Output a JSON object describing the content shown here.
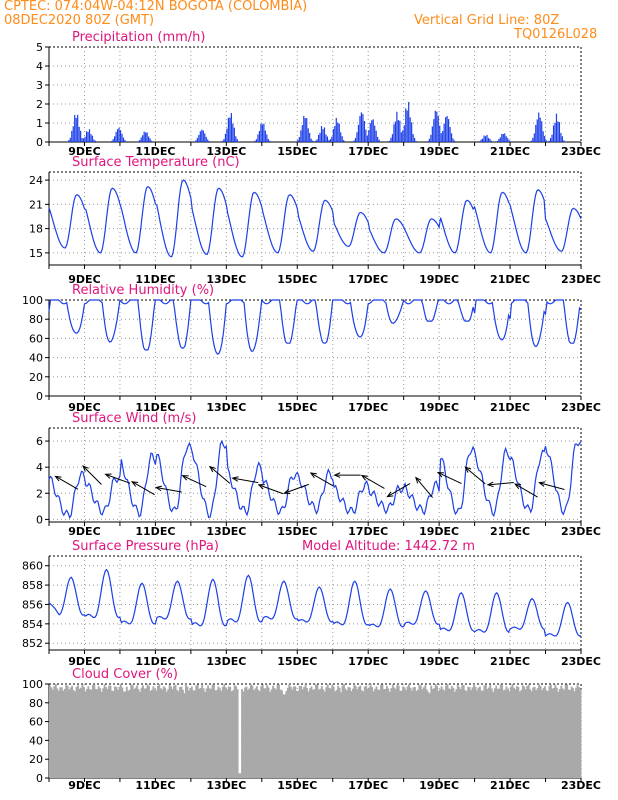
{
  "header": {
    "line1_left": "CPTEC:   074:04W-04:12N   BOGOTA (COLOMBIA)",
    "line2_left": "08DEC2020 80Z (GMT)",
    "line1_right": "Vertical Grid Line: 80Z",
    "line2_right": "TQ0126L028"
  },
  "colors": {
    "header": "#ff8c1a",
    "title": "#e0157d",
    "series": "#1c3fe8",
    "cloud": "#a9a9a9",
    "arrow": "#000000"
  },
  "chart_data": [
    {
      "type": "bar",
      "title": "Precipitation  (mm/h)",
      "x_tick_labels": [
        "9DEC",
        "11DEC",
        "13DEC",
        "15DEC",
        "17DEC",
        "19DEC",
        "21DEC",
        "23DEC"
      ],
      "ylim": [
        0,
        5
      ],
      "y_ticks": [
        0,
        1,
        2,
        3,
        4,
        5
      ],
      "grid": true,
      "rain_events": [
        {
          "day": 8.75,
          "peak": 1.6
        },
        {
          "day": 9.1,
          "peak": 0.7
        },
        {
          "day": 9.95,
          "peak": 0.8
        },
        {
          "day": 10.7,
          "peak": 0.6
        },
        {
          "day": 12.3,
          "peak": 0.7
        },
        {
          "day": 13.1,
          "peak": 1.6
        },
        {
          "day": 14.0,
          "peak": 1.1
        },
        {
          "day": 15.2,
          "peak": 1.5
        },
        {
          "day": 15.7,
          "peak": 0.9
        },
        {
          "day": 16.1,
          "peak": 1.3
        },
        {
          "day": 16.8,
          "peak": 1.7
        },
        {
          "day": 17.1,
          "peak": 1.3
        },
        {
          "day": 17.8,
          "peak": 1.6
        },
        {
          "day": 18.1,
          "peak": 2.2
        },
        {
          "day": 18.9,
          "peak": 1.8
        },
        {
          "day": 19.2,
          "peak": 1.5
        },
        {
          "day": 20.3,
          "peak": 0.4
        },
        {
          "day": 20.8,
          "peak": 0.5
        },
        {
          "day": 21.8,
          "peak": 1.6
        },
        {
          "day": 22.3,
          "peak": 1.5
        }
      ]
    },
    {
      "type": "line",
      "title": "Surface Temperature (nC)",
      "x_tick_labels": [
        "9DEC",
        "11DEC",
        "13DEC",
        "15DEC",
        "17DEC",
        "19DEC",
        "21DEC",
        "23DEC"
      ],
      "ylim": [
        13.5,
        25
      ],
      "y_ticks": [
        15,
        18,
        21,
        24
      ],
      "grid": true,
      "daily_max": [
        22.2,
        23.0,
        23.2,
        24.0,
        23.0,
        22.5,
        22.2,
        21.5,
        20.0,
        19.2,
        19.2,
        21.5,
        22.5,
        22.8,
        20.5
      ],
      "daily_min": [
        15.6,
        15.0,
        15.0,
        14.5,
        14.8,
        14.5,
        15.0,
        15.2,
        15.8,
        15.0,
        15.0,
        15.0,
        15.0,
        15.0,
        15.2
      ]
    },
    {
      "type": "line",
      "title": "Relative Humidity (%)",
      "x_tick_labels": [
        "9DEC",
        "11DEC",
        "13DEC",
        "15DEC",
        "17DEC",
        "19DEC",
        "21DEC",
        "23DEC"
      ],
      "ylim": [
        0,
        100
      ],
      "y_ticks": [
        0,
        20,
        40,
        60,
        80,
        100
      ],
      "grid": true,
      "daily_min": [
        62,
        55,
        48,
        50,
        40,
        45,
        55,
        55,
        58,
        75,
        78,
        78,
        55,
        50,
        55
      ]
    },
    {
      "type": "line",
      "title": "Surface Wind (m/s)",
      "x_tick_labels": [
        "9DEC",
        "11DEC",
        "13DEC",
        "15DEC",
        "17DEC",
        "19DEC",
        "21DEC",
        "23DEC"
      ],
      "ylim": [
        -0.2,
        7
      ],
      "y_ticks": [
        0,
        2,
        4,
        6
      ],
      "grid": true,
      "daily_max": [
        3.4,
        3.2,
        4.8,
        5.6,
        5.9,
        4.0,
        3.4,
        3.5,
        2.6,
        2.4,
        2.6,
        5.4,
        5.2,
        5.0,
        6.0
      ],
      "daily_min": [
        0.3,
        0.6,
        0.5,
        0.6,
        0.4,
        0.6,
        0.6,
        0.8,
        0.6,
        0.8,
        0.7,
        0.5,
        0.6,
        0.7,
        0.6
      ],
      "wind_arrows_deg": [
        300,
        315,
        290,
        300,
        280,
        295,
        310,
        280,
        290,
        250,
        300,
        270,
        300,
        240,
        320,
        295,
        310,
        265,
        300,
        285
      ]
    },
    {
      "type": "line",
      "title": "Surface Pressure (hPa)",
      "annotation": "Model Altitude: 1442.72  m",
      "x_tick_labels": [
        "9DEC",
        "11DEC",
        "13DEC",
        "15DEC",
        "17DEC",
        "19DEC",
        "21DEC",
        "23DEC"
      ],
      "ylim": [
        851.3,
        861
      ],
      "y_ticks": [
        852,
        854,
        856,
        858,
        860
      ],
      "grid": true,
      "start_value": 856.2,
      "daily_max": [
        858.8,
        859.6,
        858.2,
        858.4,
        858.6,
        859.0,
        858.4,
        857.8,
        858.4,
        857.6,
        857.4,
        857.2,
        857.2,
        856.6,
        856.2
      ],
      "daily_min": [
        853.6,
        853.0,
        852.6,
        853.2,
        852.2,
        852.6,
        853.2,
        853.0,
        852.4,
        852.4,
        852.8,
        852.0,
        851.8,
        852.4,
        851.6
      ]
    },
    {
      "type": "bar",
      "title": "Cloud Cover (%)",
      "x_tick_labels": [
        "9DEC",
        "11DEC",
        "13DEC",
        "15DEC",
        "17DEC",
        "19DEC",
        "21DEC",
        "23DEC"
      ],
      "ylim": [
        0,
        100
      ],
      "y_ticks": [
        0,
        20,
        40,
        60,
        80,
        100
      ],
      "grid": true,
      "typical_value": 96,
      "dips": [
        {
          "day": 10.1,
          "value": 92
        },
        {
          "day": 11.8,
          "value": 90
        },
        {
          "day": 13.35,
          "value": 5
        },
        {
          "day": 14.6,
          "value": 89
        },
        {
          "day": 16.2,
          "value": 91
        },
        {
          "day": 18.7,
          "value": 90
        },
        {
          "day": 22.5,
          "value": 94
        }
      ]
    }
  ]
}
